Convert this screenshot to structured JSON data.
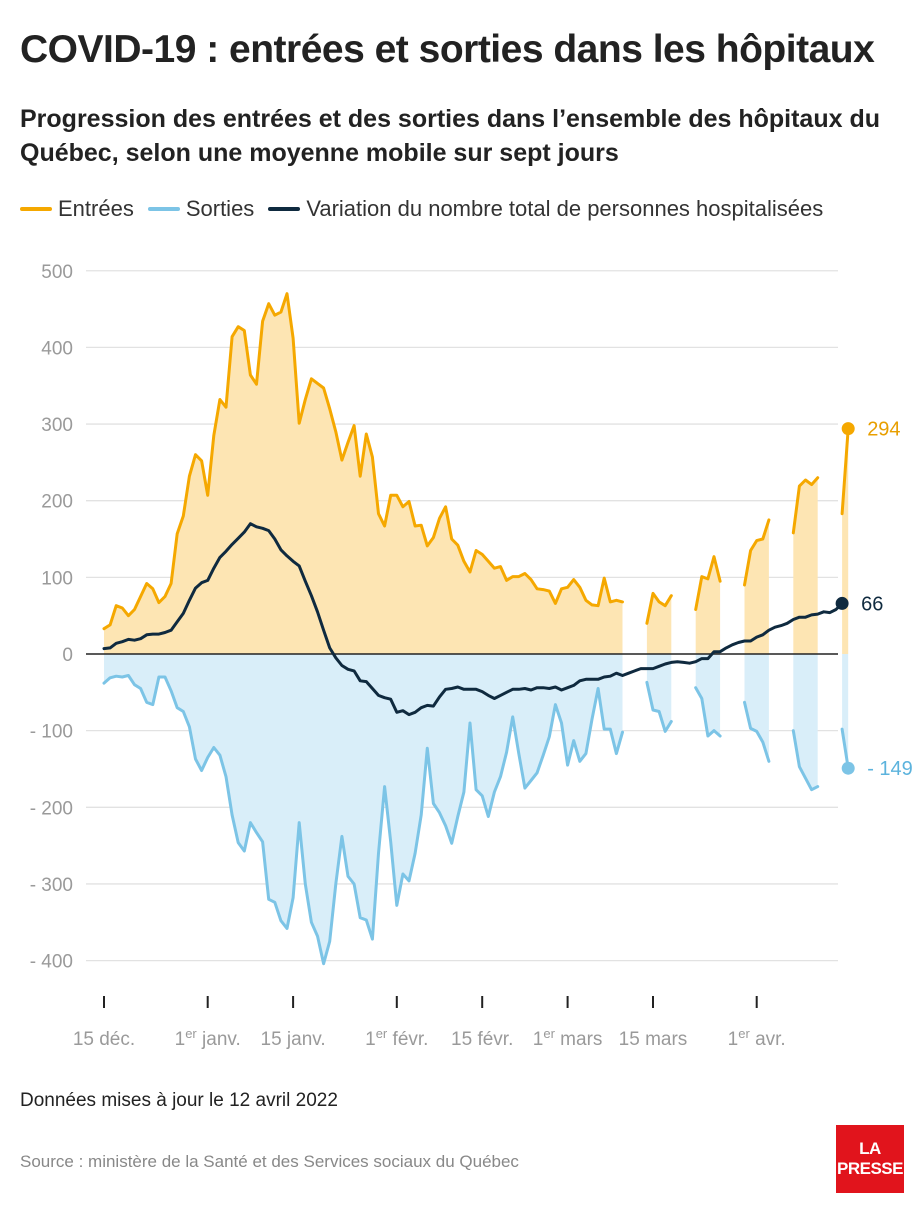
{
  "title": "COVID-19 : entrées et sorties dans les hôpitaux",
  "subtitle": "Progression des entrées et des sorties dans l’ensemble des hôpitaux du Québec, selon une moyenne mobile sur sept jours",
  "legend": [
    {
      "label": "Entrées",
      "color": "#f5a800"
    },
    {
      "label": "Sorties",
      "color": "#7cc4e6"
    },
    {
      "label": "Variation du nombre total de personnes hospitalisées",
      "color": "#0f2a3f"
    }
  ],
  "footnote": "Données mises à jour le 12 avril 2022",
  "source": "Source : ministère de la Santé et des Services sociaux du Québec",
  "logo": {
    "line1": "LA",
    "line2": "PRESSE"
  },
  "colors": {
    "entrees": "#f5a800",
    "entrees_fill": "#fde5b3",
    "sorties": "#7cc4e6",
    "sorties_fill": "#d9eef9",
    "variation": "#0f2a3f",
    "grid": "#e2e2e2",
    "zero": "#222222"
  },
  "chart_data": {
    "type": "line",
    "x_start": "2021-12-15",
    "x_end": "2022-04-12",
    "ylim": [
      -400,
      500
    ],
    "yticks": [
      500,
      400,
      300,
      200,
      100,
      0,
      -100,
      -200,
      -300,
      -400
    ],
    "ytick_labels": [
      "500",
      "400",
      "300",
      "200",
      "100",
      "0",
      "- 100",
      "- 200",
      "- 300",
      "- 400"
    ],
    "xticks": [
      {
        "date": "2021-12-15",
        "label": "15 déc.",
        "sup": ""
      },
      {
        "date": "2022-01-01",
        "label": "1",
        "sup": "er",
        "rest": " janv."
      },
      {
        "date": "2022-01-15",
        "label": "15 janv.",
        "sup": ""
      },
      {
        "date": "2022-02-01",
        "label": "1",
        "sup": "er",
        "rest": " févr."
      },
      {
        "date": "2022-02-15",
        "label": "15 févr.",
        "sup": ""
      },
      {
        "date": "2022-03-01",
        "label": "1",
        "sup": "er",
        "rest": " mars"
      },
      {
        "date": "2022-03-15",
        "label": "15 mars",
        "sup": ""
      },
      {
        "date": "2022-04-01",
        "label": "1",
        "sup": "er",
        "rest": " avr."
      }
    ],
    "series": [
      {
        "name": "Entrées",
        "key": "entrees",
        "values": [
          33,
          38,
          63,
          60,
          50,
          58,
          75,
          92,
          85,
          67,
          75,
          92,
          157,
          180,
          232,
          260,
          252,
          207,
          285,
          332,
          322,
          414,
          427,
          422,
          364,
          352,
          434,
          457,
          442,
          446,
          470,
          412,
          301,
          332,
          359,
          353,
          347,
          320,
          290,
          253,
          276,
          298,
          232,
          287,
          257,
          183,
          167,
          207,
          207,
          192,
          199,
          167,
          168,
          141,
          152,
          177,
          192,
          150,
          142,
          121,
          107,
          135,
          130,
          121,
          112,
          114,
          96,
          101,
          101,
          105,
          97,
          85,
          84,
          82,
          66,
          85,
          87,
          97,
          87,
          70,
          64,
          63,
          99,
          68,
          70,
          68,
          null,
          null,
          null,
          40,
          79,
          68,
          63,
          76,
          null,
          null,
          null,
          58,
          101,
          98,
          127,
          95,
          null,
          null,
          null,
          90,
          135,
          148,
          150,
          175,
          null,
          null,
          null,
          158,
          219,
          227,
          221,
          230,
          null,
          null,
          null,
          183,
          294
        ]
      },
      {
        "name": "Sorties",
        "key": "sorties",
        "values": [
          -38,
          -31,
          -29,
          -30,
          -28,
          -40,
          -45,
          -63,
          -66,
          -30,
          -30,
          -48,
          -70,
          -75,
          -95,
          -137,
          -152,
          -135,
          -122,
          -132,
          -160,
          -210,
          -246,
          -257,
          -220,
          -233,
          -245,
          -320,
          -324,
          -348,
          -358,
          -318,
          -220,
          -300,
          -350,
          -368,
          -404,
          -375,
          -300,
          -238,
          -290,
          -300,
          -344,
          -347,
          -372,
          -260,
          -173,
          -245,
          -328,
          -287,
          -296,
          -260,
          -210,
          -123,
          -195,
          -207,
          -224,
          -247,
          -212,
          -180,
          -90,
          -177,
          -185,
          -212,
          -180,
          -160,
          -128,
          -82,
          -130,
          -175,
          -165,
          -155,
          -132,
          -108,
          -66,
          -90,
          -145,
          -113,
          -140,
          -130,
          -85,
          -45,
          -98,
          -98,
          -130,
          -102,
          null,
          null,
          null,
          -37,
          -73,
          -75,
          -101,
          -88,
          null,
          null,
          null,
          -44,
          -58,
          -107,
          -100,
          -107,
          null,
          null,
          null,
          -63,
          -97,
          -101,
          -115,
          -140,
          null,
          null,
          null,
          -100,
          -147,
          -162,
          -177,
          -173,
          null,
          null,
          null,
          -98,
          -149
        ]
      },
      {
        "name": "Variation du nombre total de personnes hospitalisées",
        "key": "variation",
        "values": [
          7,
          8,
          14,
          16,
          19,
          18,
          20,
          25,
          26,
          26,
          28,
          31,
          42,
          53,
          70,
          86,
          93,
          96,
          112,
          126,
          134,
          143,
          151,
          159,
          170,
          166,
          164,
          161,
          150,
          136,
          128,
          121,
          115,
          95,
          76,
          55,
          31,
          8,
          -5,
          -15,
          -20,
          -22,
          -35,
          -36,
          -45,
          -54,
          -57,
          -59,
          -76,
          -74,
          -79,
          -76,
          -70,
          -67,
          -68,
          -56,
          -46,
          -45,
          -43,
          -46,
          -46,
          -46,
          -49,
          -54,
          -58,
          -54,
          -50,
          -46,
          -46,
          -45,
          -47,
          -44,
          -44,
          -45,
          -43,
          -47,
          -44,
          -41,
          -35,
          -33,
          -33,
          -33,
          -30,
          -29,
          -25,
          -28,
          -25,
          -22,
          -19,
          -19,
          -19,
          -16,
          -13,
          -11,
          -10,
          -11,
          -12,
          -10,
          -6,
          -6,
          3,
          3,
          8,
          12,
          15,
          17,
          17,
          22,
          25,
          31,
          35,
          37,
          40,
          45,
          48,
          48,
          51,
          52,
          55,
          54,
          58,
          66
        ]
      }
    ],
    "end_labels": {
      "entrees": "294",
      "variation": "66",
      "sorties": "- 149"
    },
    "grid": true,
    "legend_position": "top-left"
  }
}
